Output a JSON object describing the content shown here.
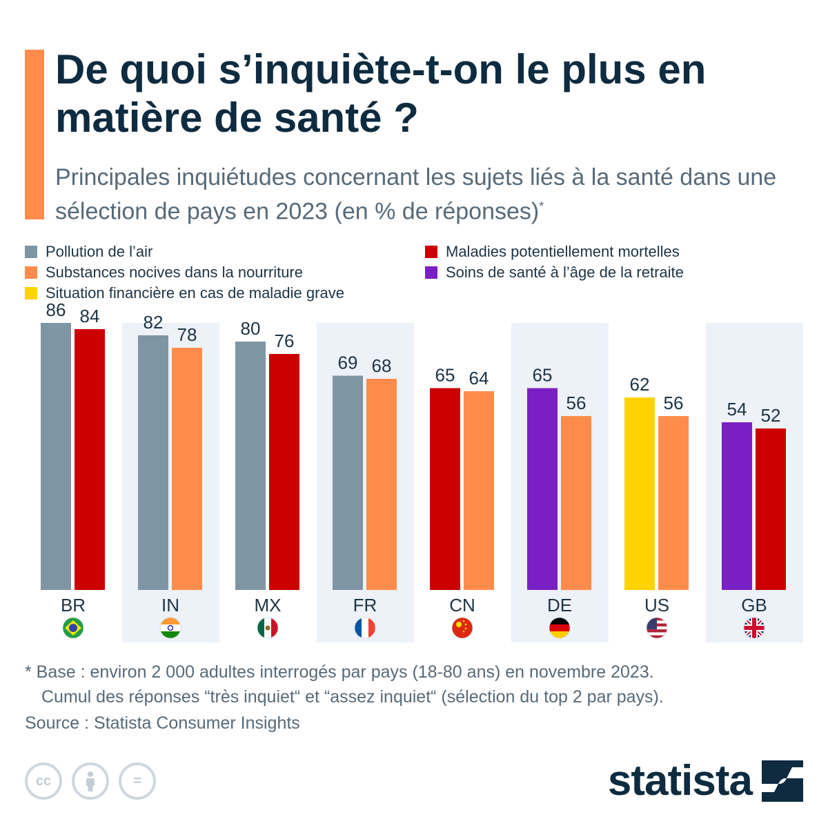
{
  "header": {
    "title": "De quoi s’inquiète-t-on le plus en matière de santé ?",
    "subtitle": "Principales inquiétudes concernant les sujets liés à la santé dans une sélection de pays en 2023 (en % de réponses)",
    "subtitle_marker": "*",
    "accent_color": "#ff8c4b"
  },
  "legend": [
    {
      "key": "pollution",
      "label": "Pollution de l’air",
      "color": "#7e95a4"
    },
    {
      "key": "substances",
      "label": "Substances nocives dans la nourriture",
      "color": "#ff8c4b"
    },
    {
      "key": "financiere",
      "label": "Situation financière en cas de maladie grave",
      "color": "#ffd200"
    },
    {
      "key": "maladies",
      "label": "Maladies potentiellement mortelles",
      "color": "#cc0000"
    },
    {
      "key": "soins",
      "label": "Soins de santé à l’âge de la retraite",
      "color": "#7a1fc4"
    }
  ],
  "chart_data": {
    "type": "bar",
    "categories": [
      "BR",
      "IN",
      "MX",
      "FR",
      "CN",
      "DE",
      "US",
      "GB"
    ],
    "ylim": [
      0,
      100
    ],
    "grid": false,
    "groups": [
      {
        "country": "BR",
        "flag": "brazil-flag",
        "bars": [
          {
            "series": "pollution",
            "value": 86
          },
          {
            "series": "maladies",
            "value": 84
          }
        ]
      },
      {
        "country": "IN",
        "flag": "india-flag",
        "bars": [
          {
            "series": "pollution",
            "value": 82
          },
          {
            "series": "substances",
            "value": 78
          }
        ]
      },
      {
        "country": "MX",
        "flag": "mexico-flag",
        "bars": [
          {
            "series": "pollution",
            "value": 80
          },
          {
            "series": "maladies",
            "value": 76
          }
        ]
      },
      {
        "country": "FR",
        "flag": "france-flag",
        "bars": [
          {
            "series": "pollution",
            "value": 69
          },
          {
            "series": "substances",
            "value": 68
          }
        ]
      },
      {
        "country": "CN",
        "flag": "china-flag",
        "bars": [
          {
            "series": "maladies",
            "value": 65
          },
          {
            "series": "substances",
            "value": 64
          }
        ]
      },
      {
        "country": "DE",
        "flag": "germany-flag",
        "bars": [
          {
            "series": "soins",
            "value": 65
          },
          {
            "series": "substances",
            "value": 56
          }
        ]
      },
      {
        "country": "US",
        "flag": "usa-flag",
        "bars": [
          {
            "series": "financiere",
            "value": 62
          },
          {
            "series": "substances",
            "value": 56
          }
        ]
      },
      {
        "country": "GB",
        "flag": "uk-flag",
        "bars": [
          {
            "series": "soins",
            "value": 54
          },
          {
            "series": "maladies",
            "value": 52
          }
        ]
      }
    ],
    "band_color": "#edf1f8",
    "value_label_color": "#1c3445"
  },
  "footer": {
    "note_line1": "* Base : environ 2 000 adultes interrogés par pays (18-80 ans) en novembre 2023.",
    "note_line2": "Cumul des réponses “très inquiet“ et “assez inquiet“ (sélection du top 2 par pays).",
    "source": "Source : Statista Consumer Insights",
    "license_icons": [
      "cc-icon",
      "attribution-icon",
      "no-derivatives-icon"
    ],
    "license_cc_text": "cc",
    "license_nd_text": "=",
    "logo_text": "statista",
    "logo_icon": "statista-logo-icon"
  }
}
